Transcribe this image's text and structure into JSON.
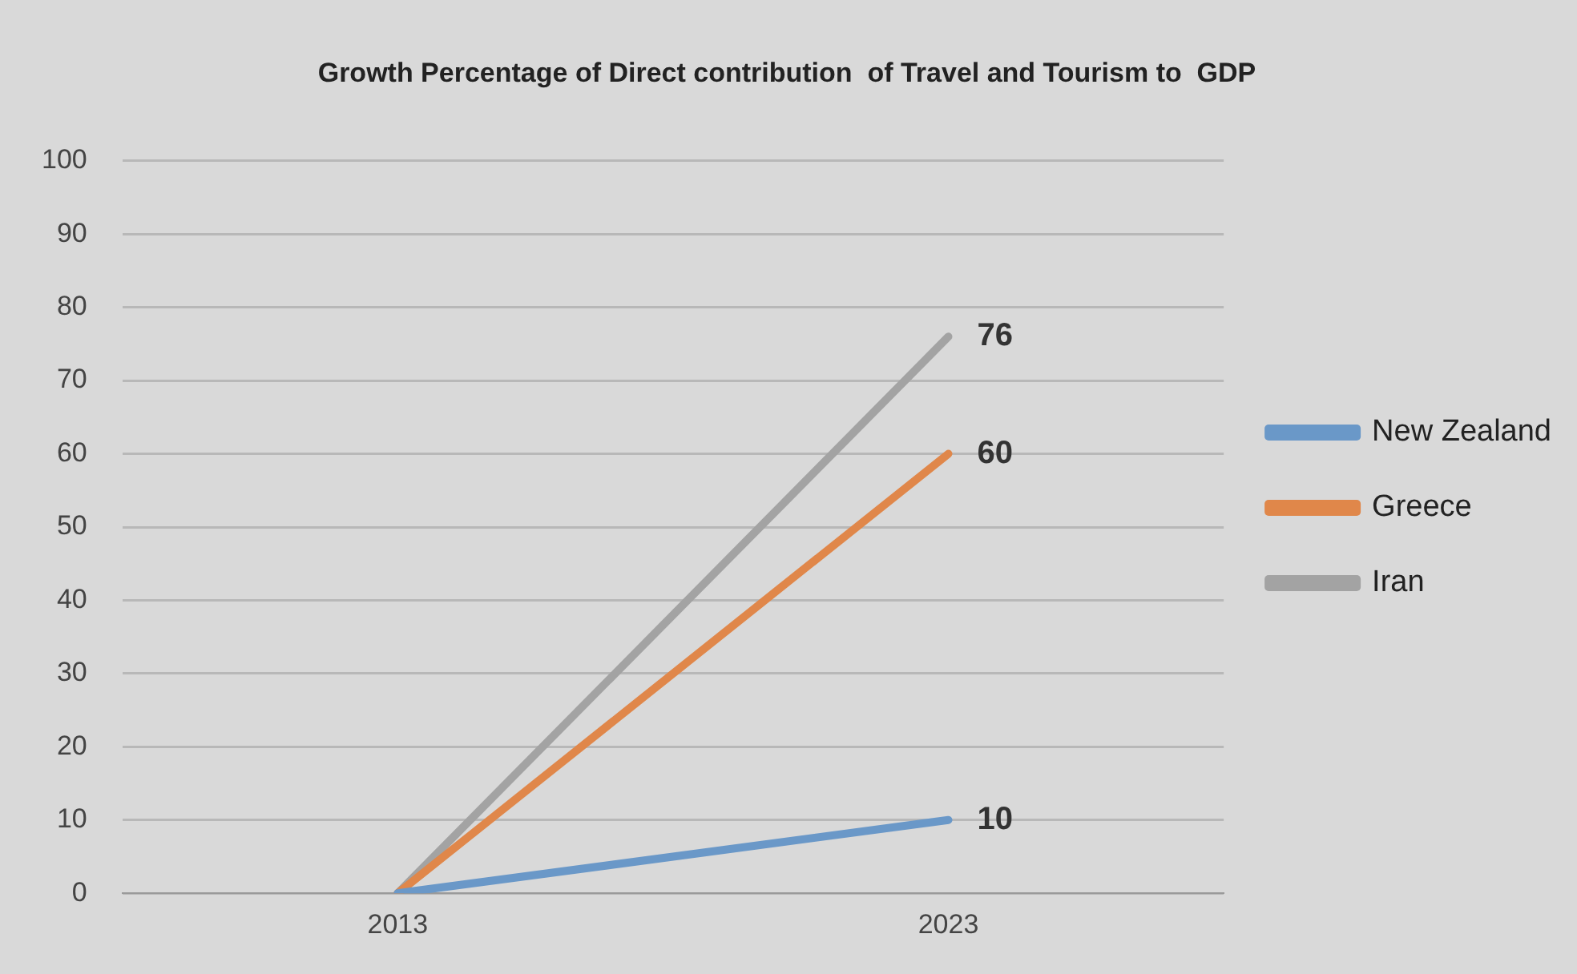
{
  "chart_data": {
    "type": "line",
    "title": "Growth Percentage of Direct contribution  of Travel and Tourism to  GDP",
    "categories": [
      "2013",
      "2023"
    ],
    "series": [
      {
        "name": "New Zealand",
        "color": "#6a98c8",
        "values": [
          0,
          10
        ],
        "value_labels": [
          null,
          "10"
        ]
      },
      {
        "name": "Greece",
        "color": "#e0874a",
        "values": [
          0,
          60
        ],
        "value_labels": [
          null,
          "60"
        ]
      },
      {
        "name": "Iran",
        "color": "#a3a3a3",
        "values": [
          0,
          76
        ],
        "value_labels": [
          null,
          "76"
        ]
      }
    ],
    "ylim": [
      0,
      100
    ],
    "yticks": [
      0,
      10,
      20,
      30,
      40,
      50,
      60,
      70,
      80,
      90,
      100
    ],
    "grid": "y",
    "legend": "right",
    "marker": "none",
    "line_style": "solid"
  }
}
